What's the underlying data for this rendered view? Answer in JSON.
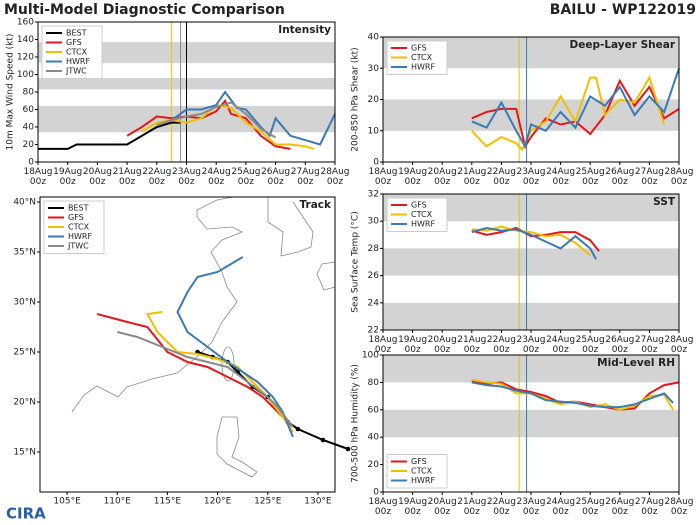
{
  "page": {
    "title": "Multi-Model Diagnostic Comparison",
    "storm": "BAILU - WP122019",
    "logo": "CIRA"
  },
  "chart_data": [
    {
      "type": "line",
      "title": "Intensity",
      "ylabel": "10m Max Wind Speed (kt)",
      "legend": "upper left",
      "band_color": "#d3d3d3",
      "xlim": [
        0,
        10
      ],
      "ylim": [
        0,
        160
      ],
      "yticks": [
        0,
        20,
        40,
        60,
        80,
        100,
        120,
        140,
        160
      ],
      "xticks": [
        {
          "value": 0,
          "label": "18Aug 00z"
        },
        {
          "value": 1,
          "label": "19Aug 00z"
        },
        {
          "value": 2,
          "label": "20Aug 00z"
        },
        {
          "value": 3,
          "label": "21Aug 00z"
        },
        {
          "value": 4,
          "label": "22Aug 00z"
        },
        {
          "value": 5,
          "label": "23Aug 00z"
        },
        {
          "value": 6,
          "label": "24Aug 00z"
        },
        {
          "value": 7,
          "label": "25Aug 00z"
        },
        {
          "value": 8,
          "label": "26Aug 00z"
        },
        {
          "value": 9,
          "label": "27Aug 00z"
        },
        {
          "value": 10,
          "label": "28Aug 00z"
        }
      ],
      "bands": [
        [
          34,
          64
        ],
        [
          83,
          96
        ],
        [
          113,
          137
        ]
      ],
      "vlines": [
        {
          "x": 4.5,
          "color": "#f0c000"
        },
        {
          "x": 4.8,
          "color": "#8a8a8a"
        },
        {
          "x": 5.0,
          "color": "#000000"
        }
      ],
      "series": [
        {
          "name": "BEST",
          "color": "#000000",
          "x": [
            0,
            1,
            1.3,
            2,
            2.5,
            3,
            3.5,
            4,
            4.5,
            4.8
          ],
          "values": [
            15,
            15,
            20,
            20,
            20,
            20,
            30,
            40,
            45,
            45
          ]
        },
        {
          "name": "GFS",
          "color": "#e8161b",
          "x": [
            3,
            3.5,
            4,
            4.5,
            5,
            5.5,
            6,
            6.3,
            6.5,
            7,
            7.5,
            8,
            8.5
          ],
          "values": [
            30,
            40,
            52,
            50,
            52,
            50,
            58,
            70,
            55,
            50,
            30,
            18,
            15
          ]
        },
        {
          "name": "CTCX",
          "color": "#f0c000",
          "x": [
            3.5,
            4,
            4.5,
            5,
            5.5,
            6,
            6.5,
            7,
            7.5,
            8,
            8.5,
            9,
            9.3
          ],
          "values": [
            35,
            45,
            48,
            45,
            50,
            65,
            62,
            45,
            35,
            20,
            20,
            18,
            15
          ]
        },
        {
          "name": "HWRF",
          "color": "#3a7ab5",
          "x": [
            4,
            4.5,
            5,
            5.5,
            6,
            6.3,
            6.7,
            7,
            7.5,
            7.8,
            8,
            8.5,
            9,
            9.5,
            10
          ],
          "values": [
            42,
            48,
            60,
            60,
            65,
            80,
            62,
            60,
            40,
            30,
            50,
            30,
            25,
            20,
            55
          ]
        },
        {
          "name": "JTWC",
          "color": "#8a8a8a",
          "x": [
            4,
            4.5,
            5,
            5.5,
            6,
            6.5,
            7,
            7.5,
            8
          ],
          "values": [
            42,
            48,
            52,
            55,
            63,
            68,
            55,
            38,
            28
          ]
        }
      ]
    },
    {
      "type": "line",
      "title": "Deep-Layer Shear",
      "ylabel": "200-850 hPa Shear (kt)",
      "legend": "upper left",
      "band_color": "#d3d3d3",
      "xlim": [
        0,
        10
      ],
      "ylim": [
        0,
        40
      ],
      "yticks": [
        0,
        10,
        20,
        30,
        40
      ],
      "xticks": [
        {
          "value": 0,
          "label": "18Aug 00z"
        },
        {
          "value": 1,
          "label": "19Aug 00z"
        },
        {
          "value": 2,
          "label": "20Aug 00z"
        },
        {
          "value": 3,
          "label": "21Aug 00z"
        },
        {
          "value": 4,
          "label": "22Aug 00z"
        },
        {
          "value": 5,
          "label": "23Aug 00z"
        },
        {
          "value": 6,
          "label": "24Aug 00z"
        },
        {
          "value": 7,
          "label": "25Aug 00z"
        },
        {
          "value": 8,
          "label": "26Aug 00z"
        },
        {
          "value": 9,
          "label": "27Aug 00z"
        },
        {
          "value": 10,
          "label": "28Aug 00z"
        }
      ],
      "bands": [
        [
          10,
          20
        ],
        [
          30,
          40
        ]
      ],
      "vlines": [
        {
          "x": 4.6,
          "color": "#f0c000"
        },
        {
          "x": 4.85,
          "color": "#3a7ab5"
        }
      ],
      "series": [
        {
          "name": "GFS",
          "color": "#e8161b",
          "x": [
            3,
            3.5,
            4,
            4.5,
            4.8,
            5,
            5.5,
            6,
            6.5,
            7,
            7.5,
            8,
            8.5,
            9,
            9.5,
            10
          ],
          "values": [
            14,
            16,
            17,
            17,
            5,
            8,
            14,
            12,
            13,
            9,
            15,
            26,
            18,
            24,
            14,
            17
          ]
        },
        {
          "name": "CTCX",
          "color": "#f0c000",
          "x": [
            3,
            3.5,
            4,
            4.5,
            4.7,
            5,
            5.5,
            6,
            6.5,
            7,
            7.2,
            7.5,
            8,
            8.5,
            9,
            9.5
          ],
          "values": [
            10,
            5,
            8,
            6,
            4,
            10,
            13,
            21,
            13,
            27,
            27,
            15,
            20,
            19,
            27,
            12
          ]
        },
        {
          "name": "HWRF",
          "color": "#3a7ab5",
          "x": [
            3,
            3.5,
            4,
            4.5,
            4.8,
            5,
            5.5,
            6,
            6.5,
            7,
            7.5,
            8,
            8.5,
            9,
            9.5,
            10
          ],
          "values": [
            13,
            11,
            19,
            10,
            5,
            12,
            10,
            16,
            11,
            21,
            18,
            24,
            15,
            21,
            16,
            30
          ]
        }
      ]
    },
    {
      "type": "map",
      "title": "Track",
      "legend": "upper left",
      "xlim": [
        102.3,
        131.7
      ],
      "ylim": [
        11,
        40.5
      ],
      "xticks": [
        {
          "value": 105,
          "label": "105°E"
        },
        {
          "value": 110,
          "label": "110°E"
        },
        {
          "value": 115,
          "label": "115°E"
        },
        {
          "value": 120,
          "label": "120°E"
        },
        {
          "value": 125,
          "label": "125°E"
        },
        {
          "value": 130,
          "label": "130°E"
        }
      ],
      "yticks": [
        {
          "value": 15,
          "label": "15°N"
        },
        {
          "value": 20,
          "label": "20°N"
        },
        {
          "value": 25,
          "label": "25°N"
        },
        {
          "value": 30,
          "label": "30°N"
        },
        {
          "value": 35,
          "label": "35°N"
        },
        {
          "value": 40,
          "label": "40°N"
        }
      ],
      "series": [
        {
          "name": "BEST",
          "color": "#000000",
          "markers": true,
          "x": [
            133,
            130.5,
            128,
            127,
            126,
            125,
            123.5,
            122,
            121,
            119.5,
            118
          ],
          "values": [
            15.3,
            16.2,
            17.3,
            18,
            19.2,
            20.5,
            21.5,
            23,
            24,
            24.5,
            25
          ]
        },
        {
          "name": "GFS",
          "color": "#e8161b",
          "x": [
            127.5,
            126,
            124.5,
            123,
            121,
            119,
            117,
            115,
            113,
            111,
            108
          ],
          "values": [
            17.5,
            19,
            20.5,
            21.5,
            22.5,
            23.5,
            24,
            25,
            27.5,
            28,
            28.8
          ]
        },
        {
          "name": "CTCX",
          "color": "#f0c000",
          "x": [
            127.5,
            126.5,
            125,
            123.5,
            122,
            120,
            118,
            116,
            114,
            113,
            114.5
          ],
          "values": [
            17,
            18.5,
            20.5,
            22,
            23.5,
            24.3,
            24.8,
            25,
            27,
            28.8,
            29
          ]
        },
        {
          "name": "HWRF",
          "color": "#3a7ab5",
          "x": [
            127.5,
            126.5,
            125.5,
            124,
            122.5,
            121,
            119,
            117,
            116,
            117,
            118,
            120,
            122.5
          ],
          "values": [
            16.5,
            19,
            20.5,
            22,
            23,
            24,
            25.5,
            27,
            29,
            31,
            32.5,
            33,
            34.5
          ]
        },
        {
          "name": "JTWC",
          "color": "#8a8a8a",
          "x": [
            127.5,
            126,
            125,
            123,
            121,
            119,
            117,
            114.5,
            112,
            110
          ],
          "values": [
            17.5,
            19.5,
            20.5,
            22,
            23.5,
            24,
            24.5,
            25.5,
            26.5,
            27
          ]
        }
      ]
    },
    {
      "type": "line",
      "title": "SST",
      "ylabel": "Sea Surface Temp (°C)",
      "legend": "upper left",
      "band_color": "#d3d3d3",
      "xlim": [
        0,
        10
      ],
      "ylim": [
        22,
        32
      ],
      "yticks": [
        22,
        24,
        26,
        28,
        30,
        32
      ],
      "xticks": [
        {
          "value": 0,
          "label": "18Aug 00z"
        },
        {
          "value": 1,
          "label": "19Aug 00z"
        },
        {
          "value": 2,
          "label": "20Aug 00z"
        },
        {
          "value": 3,
          "label": "21Aug 00z"
        },
        {
          "value": 4,
          "label": "22Aug 00z"
        },
        {
          "value": 5,
          "label": "23Aug 00z"
        },
        {
          "value": 6,
          "label": "24Aug 00z"
        },
        {
          "value": 7,
          "label": "25Aug 00z"
        },
        {
          "value": 8,
          "label": "26Aug 00z"
        },
        {
          "value": 9,
          "label": "27Aug 00z"
        },
        {
          "value": 10,
          "label": "28Aug 00z"
        }
      ],
      "bands": [
        [
          22,
          24
        ],
        [
          26,
          28
        ],
        [
          30,
          32
        ]
      ],
      "vlines": [
        {
          "x": 4.6,
          "color": "#f0c000"
        },
        {
          "x": 4.85,
          "color": "#3a7ab5"
        }
      ],
      "series": [
        {
          "name": "GFS",
          "color": "#e8161b",
          "x": [
            3,
            3.5,
            4,
            4.5,
            5,
            5.5,
            6,
            6.5,
            7,
            7.3
          ],
          "values": [
            29.3,
            29,
            29.2,
            29.5,
            28.9,
            29,
            29.2,
            29.2,
            28.6,
            27.8
          ]
        },
        {
          "name": "CTCX",
          "color": "#f0c000",
          "x": [
            3,
            3.5,
            4,
            4.5,
            5,
            5.5,
            6,
            6.5,
            7
          ],
          "values": [
            29.4,
            29.3,
            29.6,
            29.3,
            29.2,
            28.9,
            29,
            28.4,
            27.5
          ]
        },
        {
          "name": "HWRF",
          "color": "#3a7ab5",
          "x": [
            3,
            3.5,
            4,
            4.5,
            5,
            5.5,
            6,
            6.5,
            7,
            7.2
          ],
          "values": [
            29.2,
            29.5,
            29.3,
            29.4,
            29,
            28.5,
            28,
            28.9,
            28,
            27.2
          ]
        }
      ]
    },
    {
      "type": "line",
      "title": "Mid-Level RH",
      "ylabel": "700-500 hPa Humidity (%)",
      "legend": "lower left",
      "band_color": "#d3d3d3",
      "xlim": [
        0,
        10
      ],
      "ylim": [
        0,
        100
      ],
      "yticks": [
        0,
        20,
        40,
        60,
        80,
        100
      ],
      "xticks": [
        {
          "value": 0,
          "label": "18Aug 00z"
        },
        {
          "value": 1,
          "label": "19Aug 00z"
        },
        {
          "value": 2,
          "label": "20Aug 00z"
        },
        {
          "value": 3,
          "label": "21Aug 00z"
        },
        {
          "value": 4,
          "label": "22Aug 00z"
        },
        {
          "value": 5,
          "label": "23Aug 00z"
        },
        {
          "value": 6,
          "label": "24Aug 00z"
        },
        {
          "value": 7,
          "label": "25Aug 00z"
        },
        {
          "value": 8,
          "label": "26Aug 00z"
        },
        {
          "value": 9,
          "label": "27Aug 00z"
        },
        {
          "value": 10,
          "label": "28Aug 00z"
        }
      ],
      "bands": [
        [
          40,
          60
        ],
        [
          80,
          100
        ]
      ],
      "vlines": [
        {
          "x": 4.6,
          "color": "#f0c000"
        },
        {
          "x": 4.85,
          "color": "#3a7ab5"
        }
      ],
      "series": [
        {
          "name": "GFS",
          "color": "#e8161b",
          "x": [
            3,
            3.5,
            4,
            4.5,
            5,
            5.5,
            6,
            6.5,
            7,
            7.5,
            8,
            8.5,
            9,
            9.5,
            10
          ],
          "values": [
            81,
            79,
            80,
            75,
            73,
            70,
            65,
            66,
            64,
            62,
            60,
            61,
            72,
            78,
            80
          ]
        },
        {
          "name": "CTCX",
          "color": "#f0c000",
          "x": [
            3,
            3.5,
            4,
            4.5,
            5,
            5.5,
            6,
            6.5,
            7,
            7.5,
            8,
            8.5,
            9,
            9.5,
            9.8
          ],
          "values": [
            82,
            80,
            79,
            72,
            72,
            68,
            64,
            66,
            62,
            64,
            60,
            63,
            70,
            71,
            60
          ]
        },
        {
          "name": "HWRF",
          "color": "#3a7ab5",
          "x": [
            3,
            3.5,
            4,
            4.5,
            5,
            5.5,
            6,
            6.5,
            7,
            7.5,
            8,
            8.5,
            9,
            9.5,
            9.8
          ],
          "values": [
            80,
            78,
            77,
            74,
            72,
            67,
            66,
            65,
            63,
            62,
            62,
            64,
            68,
            72,
            65
          ]
        }
      ]
    }
  ]
}
